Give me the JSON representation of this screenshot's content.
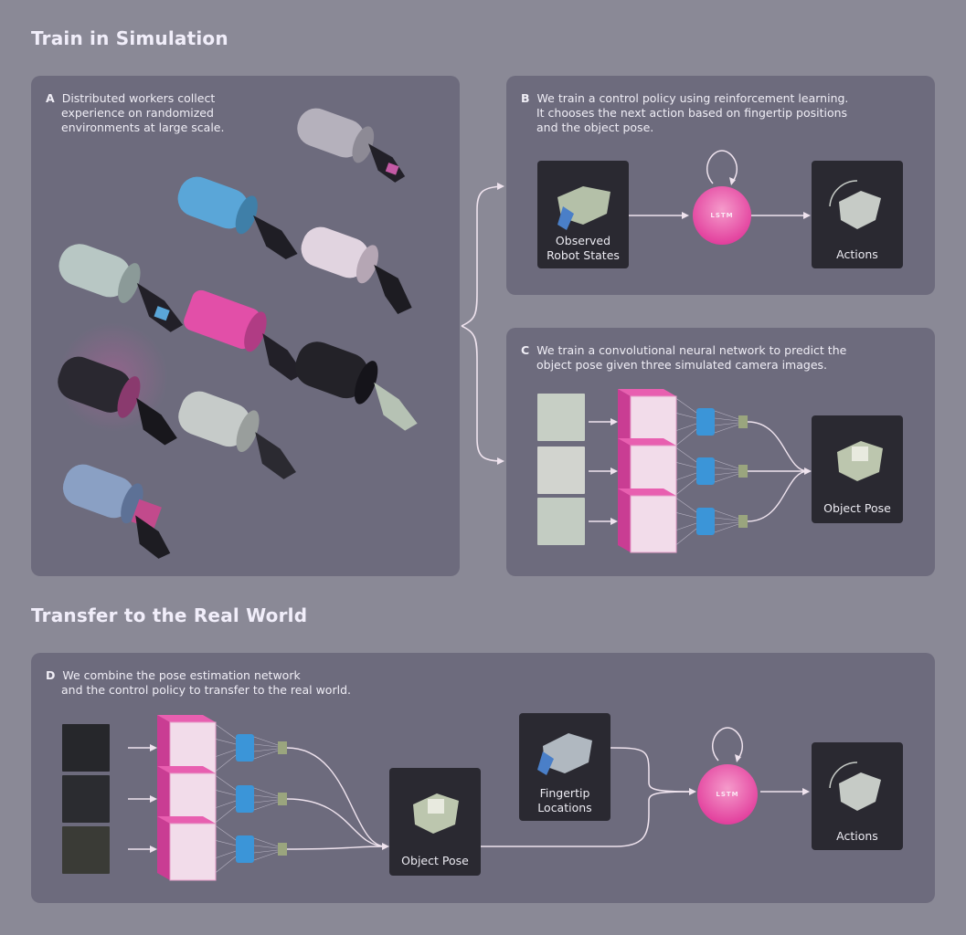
{
  "sections": {
    "train": "Train in Simulation",
    "transfer": "Transfer to the Real World"
  },
  "panel_a": {
    "letter": "A",
    "caption": [
      "Distributed workers collect",
      "experience on randomized",
      "environments at large scale."
    ]
  },
  "panel_b": {
    "letter": "B",
    "caption": [
      "We train a control policy using reinforcement learning.",
      "It chooses the next action based on fingertip positions",
      "and the object pose."
    ],
    "input_label": [
      "Observed",
      "Robot States"
    ],
    "node_label": "LSTM",
    "output_label": "Actions"
  },
  "panel_c": {
    "letter": "C",
    "caption": [
      "We train a convolutional neural network to predict the",
      "object pose given three simulated camera images."
    ],
    "output_label": "Object Pose"
  },
  "panel_d": {
    "letter": "D",
    "caption": [
      "We combine the pose estimation network",
      "and the control policy to transfer to the real world."
    ],
    "pose_label": "Object Pose",
    "fingertip_label": [
      "Fingertip",
      "Locations"
    ],
    "node_label": "LSTM",
    "output_label": "Actions"
  },
  "colors": {
    "background": "#8a8996",
    "panel": "#6d6b7d",
    "tile": "#2a2931",
    "lstm": "#e23d9c",
    "conv": "#e85fb0",
    "dense": "#3b95d8",
    "output": "#9aa57e",
    "arrow": "#efe3ee"
  }
}
